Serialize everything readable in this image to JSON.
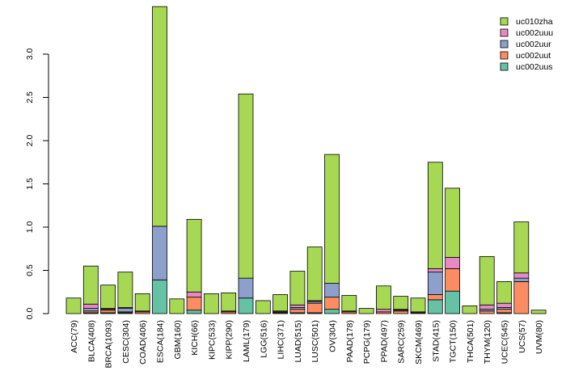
{
  "chart_data": {
    "type": "bar",
    "stacked": true,
    "title": "",
    "xlabel": "",
    "ylabel": "",
    "ylim": [
      0,
      3.55
    ],
    "yticks": [
      0.0,
      0.5,
      1.0,
      1.5,
      2.0,
      2.5,
      3.0
    ],
    "ytick_labels": [
      "0.0",
      "0.5",
      "1.0",
      "1.5",
      "2.0",
      "2.5",
      "3.0"
    ],
    "grid": false,
    "legend_position": "top-right",
    "categories": [
      "ACC(79)",
      "BLCA(408)",
      "BRCA(1093)",
      "CESC(304)",
      "COAD(406)",
      "ESCA(184)",
      "GBM(160)",
      "KICH(66)",
      "KIPC(533)",
      "KIPP(290)",
      "LAML(179)",
      "LGG(516)",
      "LIHC(371)",
      "LUAD(515)",
      "LUSC(501)",
      "OV(304)",
      "PAAD(178)",
      "PCPG(179)",
      "PPAD(497)",
      "SARC(259)",
      "SKCM(469)",
      "STAD(415)",
      "TGCT(150)",
      "THCA(501)",
      "THYM(120)",
      "UCEC(545)",
      "UCS(57)",
      "UVM(80)"
    ],
    "series": [
      {
        "name": "uc002uus",
        "color": "#66c2a5",
        "values": [
          0.0,
          0.01,
          0.01,
          0.01,
          0.0,
          0.39,
          0.0,
          0.04,
          0.0,
          0.0,
          0.18,
          0.0,
          0.0,
          0.01,
          0.01,
          0.05,
          0.0,
          0.0,
          0.0,
          0.0,
          0.0,
          0.16,
          0.26,
          0.0,
          0.0,
          0.01,
          0.0,
          0.0
        ]
      },
      {
        "name": "uc002uut",
        "color": "#fc8d62",
        "values": [
          0.0,
          0.02,
          0.03,
          0.01,
          0.02,
          0.0,
          0.0,
          0.15,
          0.0,
          0.02,
          0.0,
          0.0,
          0.01,
          0.04,
          0.11,
          0.14,
          0.02,
          0.0,
          0.02,
          0.03,
          0.01,
          0.06,
          0.26,
          0.0,
          0.03,
          0.04,
          0.37,
          0.0
        ]
      },
      {
        "name": "uc002uur",
        "color": "#8da0cb",
        "values": [
          0.0,
          0.03,
          0.01,
          0.04,
          0.0,
          0.62,
          0.0,
          0.0,
          0.0,
          0.0,
          0.23,
          0.0,
          0.01,
          0.02,
          0.02,
          0.16,
          0.0,
          0.0,
          0.0,
          0.01,
          0.01,
          0.26,
          0.0,
          0.0,
          0.02,
          0.02,
          0.04,
          0.0
        ]
      },
      {
        "name": "uc002uuu",
        "color": "#e78ac3",
        "values": [
          0.0,
          0.05,
          0.01,
          0.01,
          0.01,
          0.0,
          0.0,
          0.06,
          0.0,
          0.01,
          0.0,
          0.0,
          0.01,
          0.03,
          0.01,
          0.0,
          0.01,
          0.0,
          0.03,
          0.01,
          0.0,
          0.04,
          0.13,
          0.0,
          0.05,
          0.05,
          0.06,
          0.0
        ]
      },
      {
        "name": "uc010zha",
        "color": "#a6d854",
        "values": [
          0.18,
          0.44,
          0.27,
          0.41,
          0.2,
          2.54,
          0.17,
          0.84,
          0.23,
          0.21,
          2.13,
          0.15,
          0.19,
          0.39,
          0.62,
          1.49,
          0.18,
          0.06,
          0.27,
          0.15,
          0.16,
          1.23,
          0.8,
          0.09,
          0.56,
          0.25,
          0.59,
          0.04
        ]
      }
    ]
  }
}
